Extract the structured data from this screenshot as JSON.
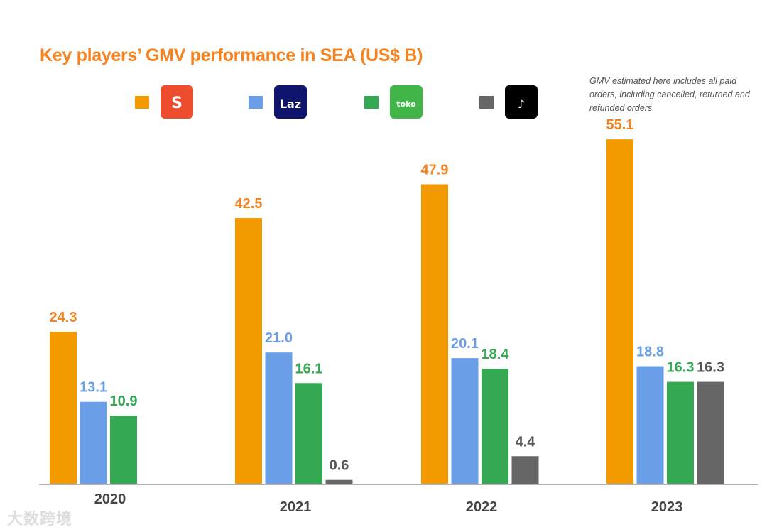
{
  "chart_data": {
    "type": "bar",
    "title": "Key players’ GMV performance in SEA (US$ B)",
    "note": "GMV estimated here includes all paid orders, including cancelled, returned and refunded orders.",
    "categories": [
      "2020",
      "2021",
      "2022",
      "2023"
    ],
    "series": [
      {
        "name": "Shopee",
        "color": "#f29a00",
        "label_color": "#f5821f",
        "values": [
          24.3,
          42.5,
          47.9,
          55.1
        ]
      },
      {
        "name": "Lazada",
        "color": "#6a9ee8",
        "label_color": "#6a9ee8",
        "values": [
          13.1,
          21.0,
          20.1,
          18.8
        ]
      },
      {
        "name": "Tokopedia",
        "color": "#34a853",
        "label_color": "#34a853",
        "values": [
          10.9,
          16.1,
          18.4,
          16.3
        ]
      },
      {
        "name": "TikTok Shop",
        "color": "#666666",
        "label_color": "#555555",
        "values": [
          null,
          0.6,
          4.4,
          16.3
        ]
      }
    ],
    "legend": {
      "placement": "top",
      "logos": [
        "Shopee",
        "Laz",
        "tokopedia",
        "tiktok-icon"
      ]
    },
    "grid": false,
    "ylim": [
      0,
      60
    ]
  },
  "watermark": "大数跨境"
}
